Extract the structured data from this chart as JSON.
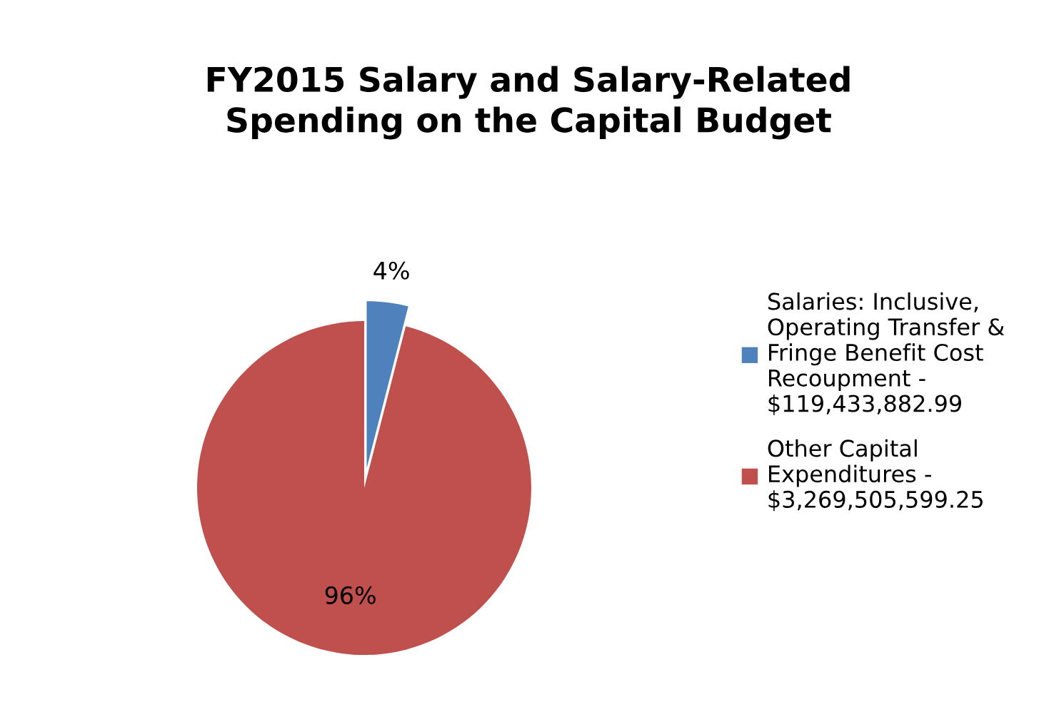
{
  "chart_data": {
    "type": "pie",
    "title": "FY2015 Salary and Salary-Related Spending on the Capital Budget",
    "categories": [
      "Salaries: Inclusive, Operating Transfer & Fringe Benefit Cost Recoupment - $119,433,882.99",
      "Other Capital Expenditures - $3,269,505,599.25"
    ],
    "values": [
      4,
      96
    ],
    "colors": [
      "#4f81bd",
      "#c0504d"
    ],
    "value_labels": [
      "4%",
      "96%"
    ],
    "legend": "right"
  }
}
